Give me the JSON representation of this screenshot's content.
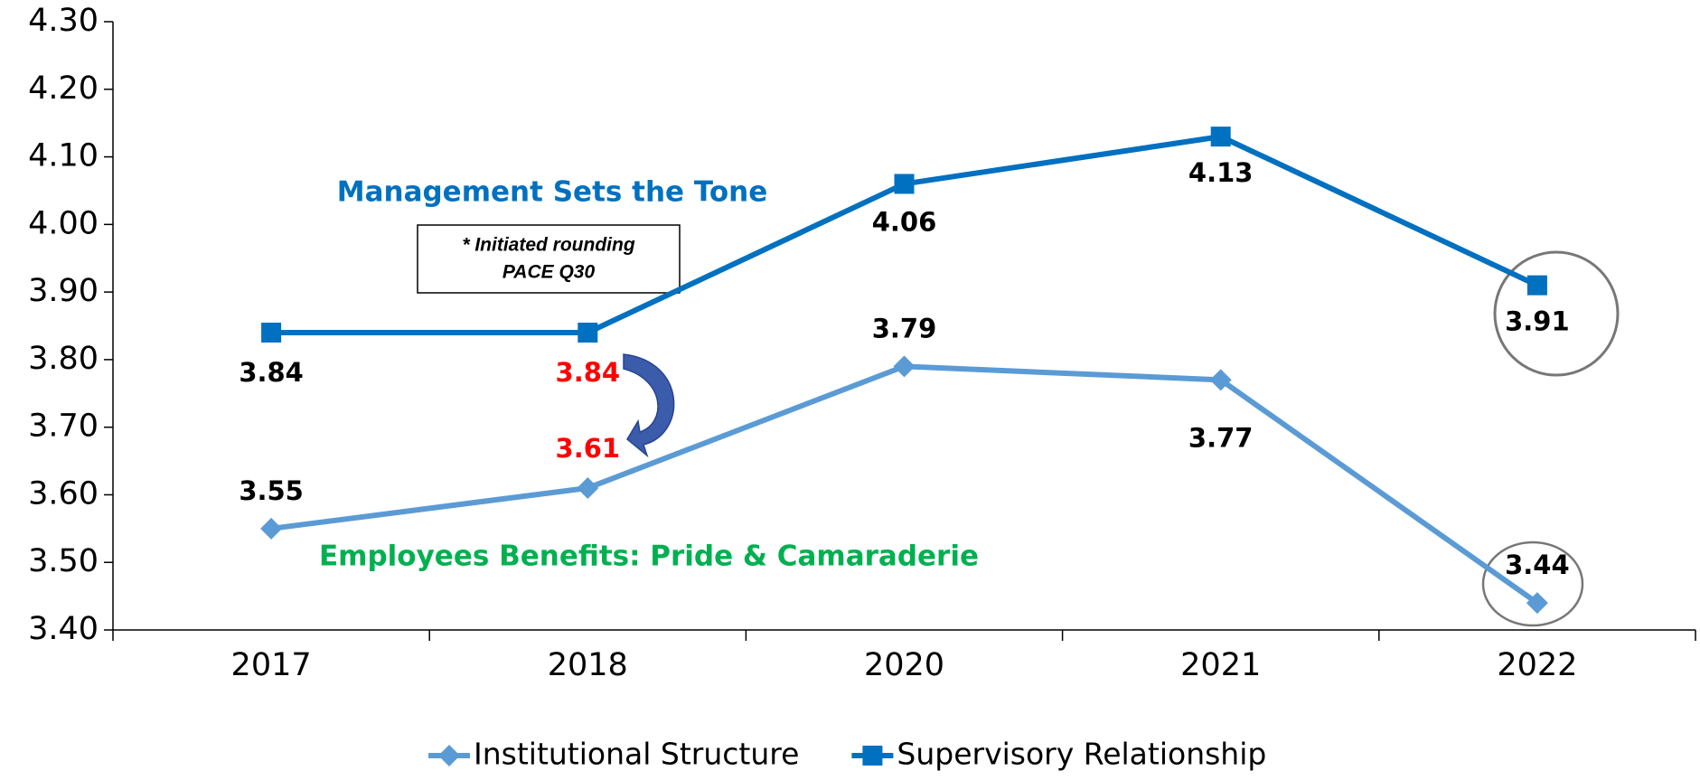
{
  "chart_data": {
    "type": "line",
    "categories": [
      "2017",
      "2018",
      "2020",
      "2021",
      "2022"
    ],
    "series": [
      {
        "name": "Institutional Structure",
        "color": "#5b9bd5",
        "marker": "diamond",
        "values": [
          3.55,
          3.61,
          3.79,
          3.77,
          3.44
        ],
        "label_colors": [
          "#000000",
          "#ff0000",
          "#000000",
          "#000000",
          "#000000"
        ]
      },
      {
        "name": "Supervisory Relationship",
        "color": "#0070c0",
        "marker": "square",
        "values": [
          3.84,
          3.84,
          4.06,
          4.13,
          3.91
        ],
        "label_colors": [
          "#000000",
          "#ff0000",
          "#000000",
          "#000000",
          "#000000"
        ]
      }
    ],
    "ylim": [
      3.4,
      4.3
    ],
    "yticks": [
      {
        "value": 3.4,
        "label": "3.40"
      },
      {
        "value": 3.5,
        "label": "3.50"
      },
      {
        "value": 3.6,
        "label": "3.60"
      },
      {
        "value": 3.7,
        "label": "3.70"
      },
      {
        "value": 3.8,
        "label": "3.80"
      },
      {
        "value": 3.9,
        "label": "3.90"
      },
      {
        "value": 4.0,
        "label": "4.00"
      },
      {
        "value": 4.1,
        "label": "4.10"
      },
      {
        "value": 4.2,
        "label": "4.20"
      },
      {
        "value": 4.3,
        "label": "4.30"
      }
    ],
    "annotations": {
      "management": "Management Sets the Tone",
      "employees": "Employees Benefits: Pride & Camaraderie",
      "note_line1": "* Initiated  rounding",
      "note_line2": "PACE Q30"
    },
    "legend": "bottom"
  }
}
